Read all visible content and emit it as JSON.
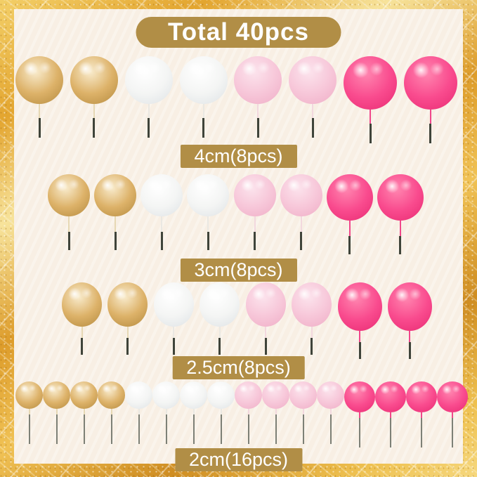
{
  "title": "Total 40pcs",
  "groups": [
    {
      "label": "4cm(8pcs)",
      "size": "4cm",
      "pieces": "8pcs",
      "balls": [
        "gold",
        "gold",
        "white",
        "white",
        "pink",
        "pink",
        "hot_pink",
        "hot_pink"
      ]
    },
    {
      "label": "3cm(8pcs)",
      "size": "3cm",
      "pieces": "8pcs",
      "balls": [
        "gold",
        "gold",
        "white",
        "white",
        "pink",
        "pink",
        "hot_pink",
        "hot_pink"
      ]
    },
    {
      "label": "2.5cm(8pcs)",
      "size": "2.5cm",
      "pieces": "8pcs",
      "balls": [
        "gold",
        "gold",
        "white",
        "white",
        "pink",
        "pink",
        "hot_pink",
        "hot_pink"
      ]
    },
    {
      "label": "2cm(16pcs)",
      "size": "2cm",
      "pieces": "16pcs",
      "balls": [
        "gold",
        "gold",
        "gold",
        "gold",
        "white",
        "white",
        "white",
        "white",
        "pink",
        "pink",
        "pink",
        "pink",
        "hot_pink",
        "hot_pink",
        "hot_pink",
        "hot_pink"
      ]
    }
  ],
  "ball_colors": {
    "gold": {
      "light": "#f9ecce",
      "base": "#ddb269",
      "dark": "#b48a3e",
      "stick": "#e6d8b4"
    },
    "white": {
      "light": "#ffffff",
      "base": "#f4f5f4",
      "dark": "#dde2e5",
      "stick": "#eae8e2"
    },
    "pink": {
      "light": "#fce4ed",
      "base": "#f7c7d9",
      "dark": "#efadc6",
      "stick": "#f2d8de"
    },
    "hot_pink": {
      "light": "#ff86b0",
      "base": "#f94b8e",
      "dark": "#e82a72",
      "stick": "#f0488b"
    }
  },
  "theme": {
    "badge_bg": "#b18e46",
    "badge_text": "#ffffff",
    "panel_bg": "#f9f1e7",
    "glitter_gold": "#e3a52f"
  }
}
